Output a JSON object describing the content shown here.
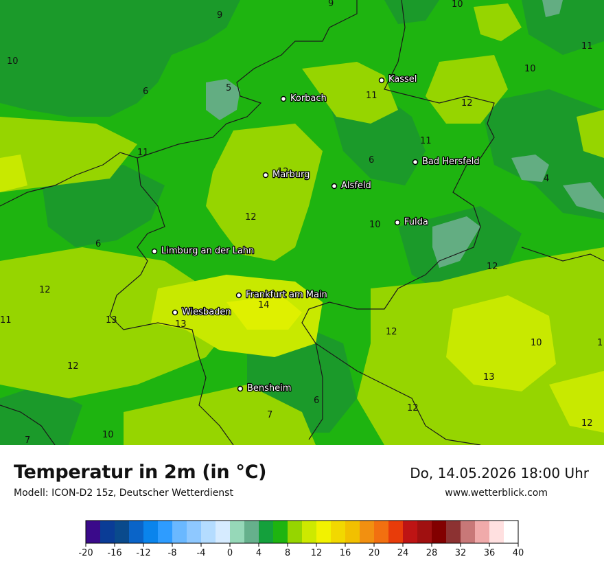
{
  "map": {
    "cities": [
      {
        "name": "Kassel",
        "label": "Kassel"
      },
      {
        "name": "Korbach",
        "label": "Korbach"
      },
      {
        "name": "Bad Hersfeld",
        "label": "Bad Hersfeld"
      },
      {
        "name": "Marburg",
        "label": "Marburg"
      },
      {
        "name": "Alsfeld",
        "label": "Alsfeld"
      },
      {
        "name": "Fulda",
        "label": "Fulda"
      },
      {
        "name": "Limburg an der Lahn",
        "label": "Limburg an der Lahn"
      },
      {
        "name": "Frankfurt am Main",
        "label": "Frankfurt am Main"
      },
      {
        "name": "Wiesbaden",
        "label": "Wiesbaden"
      },
      {
        "name": "Bensheim",
        "label": "Bensheim"
      }
    ],
    "isotherm_labels": [
      "9",
      "9",
      "10",
      "10",
      "11",
      "10",
      "6",
      "5",
      "11",
      "12",
      "11",
      "11",
      "6",
      "12",
      "4",
      "12",
      "12",
      "10",
      "6",
      "12",
      "12",
      "14",
      "11",
      "13",
      "13",
      "12",
      "10",
      "12",
      "13",
      "12",
      "6",
      "7",
      "10",
      "13",
      "1",
      "7"
    ],
    "colors": {
      "t4": "#63ad82",
      "t6": "#1b9a2a",
      "t8": "#1eb410",
      "t10": "#96d500",
      "t12": "#c8e900",
      "t14": "#dff000",
      "border": "#1a1a1a"
    }
  },
  "footer": {
    "title": "Temperatur in 2m (in °C)",
    "subtitle": "Modell: ICON-D2 15z, Deutscher Wetterdienst",
    "datetime": "Do, 14.05.2026 18:00 Uhr",
    "website": "www.wetterblick.com"
  },
  "colorbar": {
    "min": -20,
    "max": 40,
    "step": 2,
    "tick_labels": [
      "-20",
      "-16",
      "-12",
      "-8",
      "-4",
      "0",
      "4",
      "8",
      "12",
      "16",
      "20",
      "24",
      "28",
      "32",
      "36",
      "40"
    ],
    "colors": [
      "#3a0a8a",
      "#0a3c96",
      "#0a4a8c",
      "#0a64c8",
      "#0a84ec",
      "#2e9cff",
      "#6ab8ff",
      "#8ec8ff",
      "#b4dcff",
      "#d6ebff",
      "#96d8b8",
      "#66b08c",
      "#14a03c",
      "#1eb410",
      "#96d500",
      "#cde900",
      "#f2f200",
      "#f2d800",
      "#f2c000",
      "#f29010",
      "#f27010",
      "#e83c0a",
      "#be1414",
      "#a01010",
      "#820000",
      "#8c3232",
      "#c87878",
      "#f0aaaa",
      "#ffe0e0",
      "#ffffff"
    ]
  }
}
